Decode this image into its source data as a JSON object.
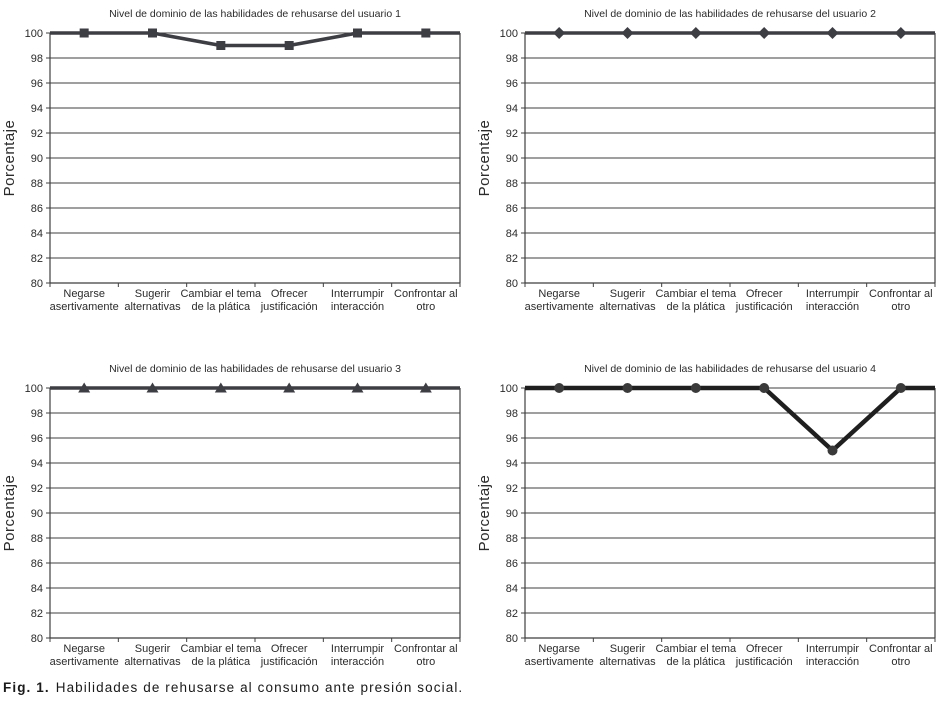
{
  "figure": {
    "caption_label": "Fig. 1.",
    "caption_text": "Habilidades de rehusarse al consumo ante presión social."
  },
  "chart_data": [
    {
      "type": "line",
      "title": "Nivel de dominio de las habilidades de rehusarse del usuario 1",
      "ylabel": "Porcentaje",
      "ylim": [
        80,
        100
      ],
      "ytick_step": 2,
      "grid": true,
      "legend": "none",
      "marker": "square",
      "line_color": "#3d3d44",
      "marker_color": "#3d3d44",
      "line_width": 3.5,
      "categories": [
        "Negarse asertivamente",
        "Sugerir alternativas",
        "Cambiar el tema de la plática",
        "Ofrecer justificación",
        "Interrumpir interacción",
        "Confrontar al otro"
      ],
      "category_label_lines": [
        [
          "Negarse",
          "asertivamente"
        ],
        [
          "Sugerir",
          "alternativas"
        ],
        [
          "Cambiar el tema",
          "de la plática"
        ],
        [
          "Ofrecer",
          "justificación"
        ],
        [
          "Interrumpir",
          "interacción"
        ],
        [
          "Confrontar al",
          "otro"
        ]
      ],
      "values": [
        100,
        100,
        99,
        99,
        100,
        100
      ]
    },
    {
      "type": "line",
      "title": "Nivel de dominio de las habilidades de rehusarse del usuario 2",
      "ylabel": "Porcentaje",
      "ylim": [
        80,
        100
      ],
      "ytick_step": 2,
      "grid": true,
      "legend": "none",
      "marker": "diamond",
      "line_color": "#3d3d44",
      "marker_color": "#3d3d44",
      "line_width": 3.5,
      "categories": [
        "Negarse asertivamente",
        "Sugerir alternativas",
        "Cambiar el tema de la plática",
        "Ofrecer justificación",
        "Interrumpir interacción",
        "Confrontar al otro"
      ],
      "category_label_lines": [
        [
          "Negarse",
          "asertivamente"
        ],
        [
          "Sugerir",
          "alternativas"
        ],
        [
          "Cambiar el tema",
          "de la plática"
        ],
        [
          "Ofrecer",
          "justificación"
        ],
        [
          "Interrumpir",
          "interacción"
        ],
        [
          "Confrontar al",
          "otro"
        ]
      ],
      "values": [
        100,
        100,
        100,
        100,
        100,
        100
      ]
    },
    {
      "type": "line",
      "title": "Nivel de dominio de las habilidades de rehusarse del usuario 3",
      "ylabel": "Porcentaje",
      "ylim": [
        80,
        100
      ],
      "ytick_step": 2,
      "grid": true,
      "legend": "none",
      "marker": "triangle",
      "line_color": "#3d3d44",
      "marker_color": "#3d3d44",
      "line_width": 3.5,
      "categories": [
        "Negarse asertivamente",
        "Sugerir alternativas",
        "Cambiar el tema de la plática",
        "Ofrecer justificación",
        "Interrumpir interacción",
        "Confrontar al otro"
      ],
      "category_label_lines": [
        [
          "Negarse",
          "asertivamente"
        ],
        [
          "Sugerir",
          "alternativas"
        ],
        [
          "Cambiar el tema",
          "de la plática"
        ],
        [
          "Ofrecer",
          "justificación"
        ],
        [
          "Interrumpir",
          "interacción"
        ],
        [
          "Confrontar al",
          "otro"
        ]
      ],
      "values": [
        100,
        100,
        100,
        100,
        100,
        100
      ]
    },
    {
      "type": "line",
      "title": "Nivel de dominio de las habilidades de rehusarse del usuario 4",
      "ylabel": "Porcentaje",
      "ylim": [
        80,
        100
      ],
      "ytick_step": 2,
      "grid": true,
      "legend": "none",
      "marker": "circle",
      "line_color": "#1f1f1f",
      "marker_color": "#3a3a3a",
      "line_width": 4.5,
      "categories": [
        "Negarse asertivamente",
        "Sugerir alternativas",
        "Cambiar el tema de la plática",
        "Ofrecer justificación",
        "Interrumpir interacción",
        "Confrontar al otro"
      ],
      "category_label_lines": [
        [
          "Negarse",
          "asertivamente"
        ],
        [
          "Sugerir",
          "alternativas"
        ],
        [
          "Cambiar el tema",
          "de la plática"
        ],
        [
          "Ofrecer",
          "justificación"
        ],
        [
          "Interrumpir",
          "interacción"
        ],
        [
          "Confrontar al",
          "otro"
        ]
      ],
      "values": [
        100,
        100,
        100,
        100,
        95,
        100
      ]
    }
  ]
}
